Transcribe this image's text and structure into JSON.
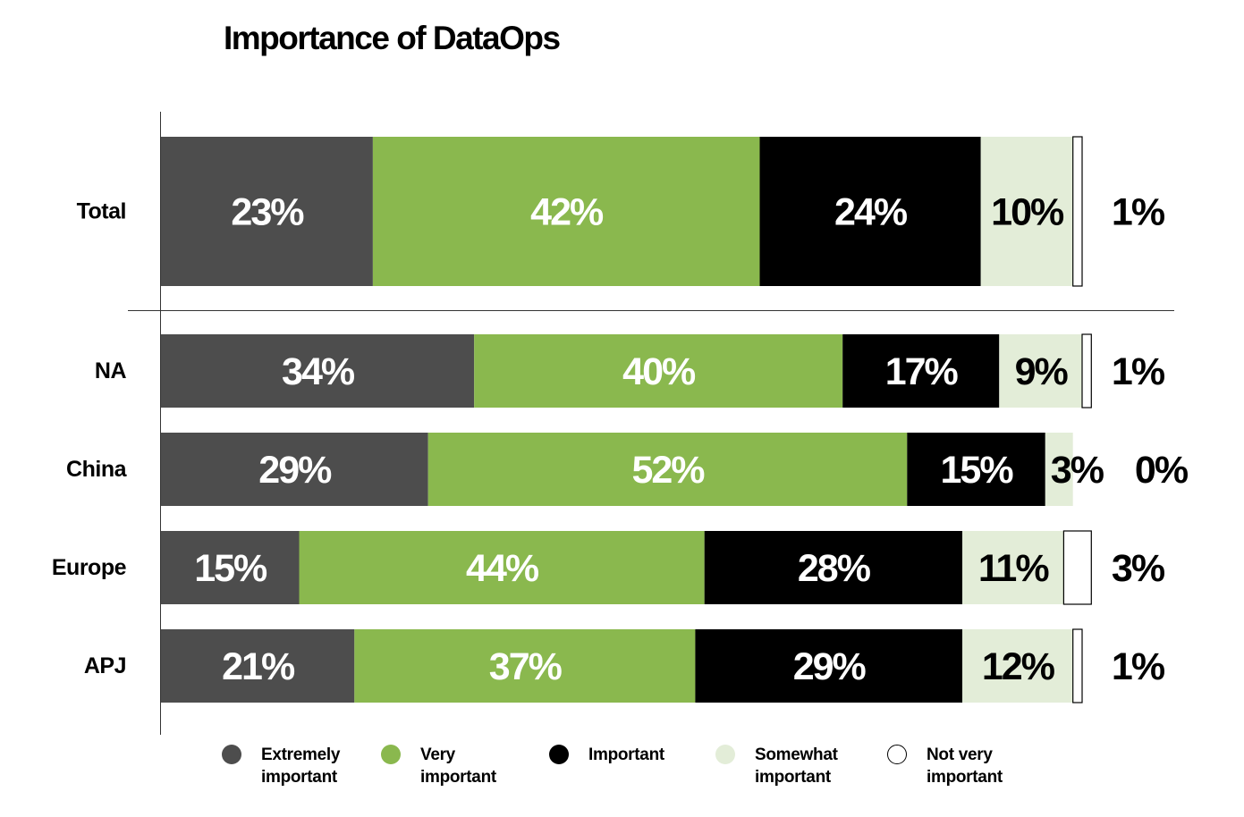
{
  "chart_data": {
    "type": "bar",
    "orientation": "horizontal",
    "stacked": true,
    "title": "Importance of DataOps",
    "xlabel": "",
    "ylabel": "",
    "xlim": [
      0,
      100
    ],
    "categories": [
      "Total",
      "NA",
      "China",
      "Europe",
      "APJ"
    ],
    "series": [
      {
        "name": "Extremely important",
        "color": "#4d4d4d",
        "label_color": "#ffffff",
        "values": [
          23,
          34,
          29,
          15,
          21
        ],
        "labels": [
          "23%",
          "34%",
          "29%",
          "15%",
          "21%"
        ]
      },
      {
        "name": "Very important",
        "color": "#8ab84e",
        "label_color": "#ffffff",
        "values": [
          42,
          40,
          52,
          44,
          37
        ],
        "labels": [
          "42%",
          "40%",
          "52%",
          "44%",
          "37%"
        ]
      },
      {
        "name": "Important",
        "color": "#000000",
        "label_color": "#ffffff",
        "values": [
          24,
          17,
          15,
          28,
          29
        ],
        "labels": [
          "24%",
          "17%",
          "15%",
          "28%",
          "29%"
        ]
      },
      {
        "name": "Somewhat important",
        "color": "#e3edd8",
        "label_color": "#000000",
        "values": [
          10,
          9,
          3,
          11,
          12
        ],
        "labels": [
          "10%",
          "9%",
          "3%",
          "11%",
          "12%"
        ]
      },
      {
        "name": "Not very important",
        "color": "#ffffff",
        "label_color": "#000000",
        "values": [
          1,
          1,
          0,
          3,
          1
        ],
        "labels": [
          "1%",
          "1%",
          "0%",
          "3%",
          "1%"
        ]
      }
    ],
    "legend": {
      "position": "bottom",
      "items": [
        {
          "line1": "Extremely",
          "line2": "important"
        },
        {
          "line1": "Very",
          "line2": "important"
        },
        {
          "line1": "Important",
          "line2": ""
        },
        {
          "line1": "Somewhat",
          "line2": "important"
        },
        {
          "line1": "Not very",
          "line2": "important"
        }
      ]
    }
  }
}
